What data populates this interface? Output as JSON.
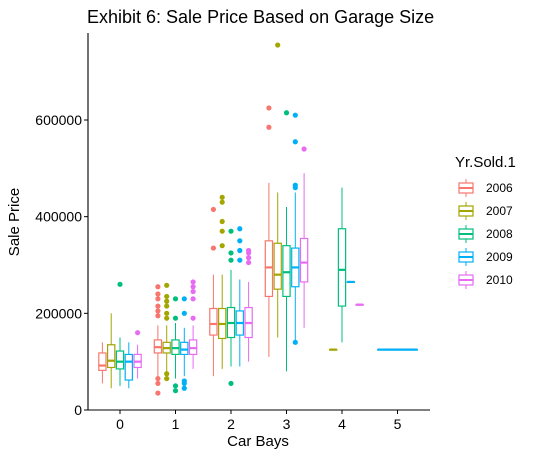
{
  "chart_data": {
    "type": "boxplot",
    "title": "Exhibit 6: Sale Price Based on Garage Size",
    "xlabel": "Car Bays",
    "ylabel": "Sale Price",
    "ylim": [
      0,
      780000
    ],
    "y_ticks": [
      0,
      200000,
      400000,
      600000
    ],
    "y_tick_labels": [
      "0",
      "200000",
      "400000",
      "600000"
    ],
    "categories": [
      "0",
      "1",
      "2",
      "3",
      "4",
      "5"
    ],
    "grid": false,
    "legend": {
      "title": "Yr.Sold.1",
      "placement": "right"
    },
    "colors": {
      "2006": "#F8766D",
      "2007": "#A3A500",
      "2008": "#00BF7D",
      "2009": "#00B0F6",
      "2010": "#E76BF3"
    },
    "series": [
      {
        "name": "2006",
        "boxes": [
          {
            "category": "0",
            "min": 55000,
            "q1": 82000,
            "median": 92000,
            "q3": 118000,
            "max": 140000,
            "outliers": []
          },
          {
            "category": "1",
            "min": 60000,
            "q1": 118000,
            "median": 130000,
            "q3": 145000,
            "max": 175000,
            "outliers": [
              35000,
              55000,
              65000,
              195000,
              205000,
              215000,
              230000,
              240000,
              255000
            ]
          },
          {
            "category": "2",
            "min": 70000,
            "q1": 155000,
            "median": 178000,
            "q3": 210000,
            "max": 280000,
            "outliers": [
              335000,
              415000
            ]
          },
          {
            "category": "3",
            "min": 110000,
            "q1": 235000,
            "median": 295000,
            "q3": 350000,
            "max": 470000,
            "outliers": [
              585000,
              625000
            ]
          }
        ]
      },
      {
        "name": "2007",
        "boxes": [
          {
            "category": "0",
            "min": 45000,
            "q1": 88000,
            "median": 102000,
            "q3": 135000,
            "max": 200000,
            "outliers": []
          },
          {
            "category": "1",
            "min": 78000,
            "q1": 118000,
            "median": 128000,
            "q3": 140000,
            "max": 175000,
            "outliers": [
              65000,
              75000,
              190000,
              200000,
              215000,
              225000,
              235000,
              258000
            ]
          },
          {
            "category": "2",
            "min": 85000,
            "q1": 148000,
            "median": 178000,
            "q3": 210000,
            "max": 280000,
            "outliers": [
              340000,
              370000,
              390000,
              430000,
              440000
            ]
          },
          {
            "category": "3",
            "min": 150000,
            "q1": 250000,
            "median": 280000,
            "q3": 345000,
            "max": 450000,
            "outliers": [
              755000
            ]
          },
          {
            "category": "4",
            "min": 125000,
            "q1": 125000,
            "median": 125000,
            "q3": 125000,
            "max": 125000,
            "outliers": []
          }
        ]
      },
      {
        "name": "2008",
        "boxes": [
          {
            "category": "0",
            "min": 50000,
            "q1": 85000,
            "median": 100000,
            "q3": 122000,
            "max": 150000,
            "outliers": [
              260000
            ]
          },
          {
            "category": "1",
            "min": 65000,
            "q1": 115000,
            "median": 128000,
            "q3": 145000,
            "max": 180000,
            "outliers": [
              40000,
              50000,
              190000,
              230000
            ]
          },
          {
            "category": "2",
            "min": 90000,
            "q1": 150000,
            "median": 180000,
            "q3": 212000,
            "max": 290000,
            "outliers": [
              55000,
              310000,
              325000,
              370000
            ]
          },
          {
            "category": "3",
            "min": 80000,
            "q1": 235000,
            "median": 285000,
            "q3": 340000,
            "max": 420000,
            "outliers": [
              615000
            ]
          },
          {
            "category": "4",
            "min": 140000,
            "q1": 215000,
            "median": 290000,
            "q3": 375000,
            "max": 460000,
            "outliers": []
          }
        ]
      },
      {
        "name": "2009",
        "boxes": [
          {
            "category": "0",
            "min": 45000,
            "q1": 62000,
            "median": 100000,
            "q3": 115000,
            "max": 140000,
            "outliers": []
          },
          {
            "category": "1",
            "min": 70000,
            "q1": 115000,
            "median": 125000,
            "q3": 140000,
            "max": 170000,
            "outliers": [
              45000,
              55000,
              60000,
              200000,
              230000
            ]
          },
          {
            "category": "2",
            "min": 90000,
            "q1": 155000,
            "median": 180000,
            "q3": 205000,
            "max": 270000,
            "outliers": [
              310000,
              330000,
              350000,
              375000
            ]
          },
          {
            "category": "3",
            "min": 140000,
            "q1": 255000,
            "median": 295000,
            "q3": 335000,
            "max": 450000,
            "outliers": [
              140000,
              460000,
              465000,
              555000,
              610000
            ]
          },
          {
            "category": "4",
            "min": 265000,
            "q1": 265000,
            "median": 265000,
            "q3": 265000,
            "max": 265000,
            "outliers": []
          },
          {
            "category": "5",
            "min": 125000,
            "q1": 125000,
            "median": 125000,
            "q3": 125000,
            "max": 125000,
            "outliers": []
          }
        ]
      },
      {
        "name": "2010",
        "boxes": [
          {
            "category": "0",
            "min": 65000,
            "q1": 88000,
            "median": 100000,
            "q3": 115000,
            "max": 135000,
            "outliers": [
              160000
            ]
          },
          {
            "category": "1",
            "min": 85000,
            "q1": 115000,
            "median": 128000,
            "q3": 145000,
            "max": 175000,
            "outliers": [
              190000,
              230000,
              245000,
              255000,
              265000
            ]
          },
          {
            "category": "2",
            "min": 100000,
            "q1": 150000,
            "median": 180000,
            "q3": 212000,
            "max": 265000,
            "outliers": [
              305000,
              315000,
              325000,
              330000
            ]
          },
          {
            "category": "3",
            "min": 170000,
            "q1": 265000,
            "median": 305000,
            "q3": 355000,
            "max": 490000,
            "outliers": [
              540000
            ]
          },
          {
            "category": "4",
            "min": 218000,
            "q1": 218000,
            "median": 218000,
            "q3": 218000,
            "max": 218000,
            "outliers": []
          }
        ]
      }
    ]
  }
}
